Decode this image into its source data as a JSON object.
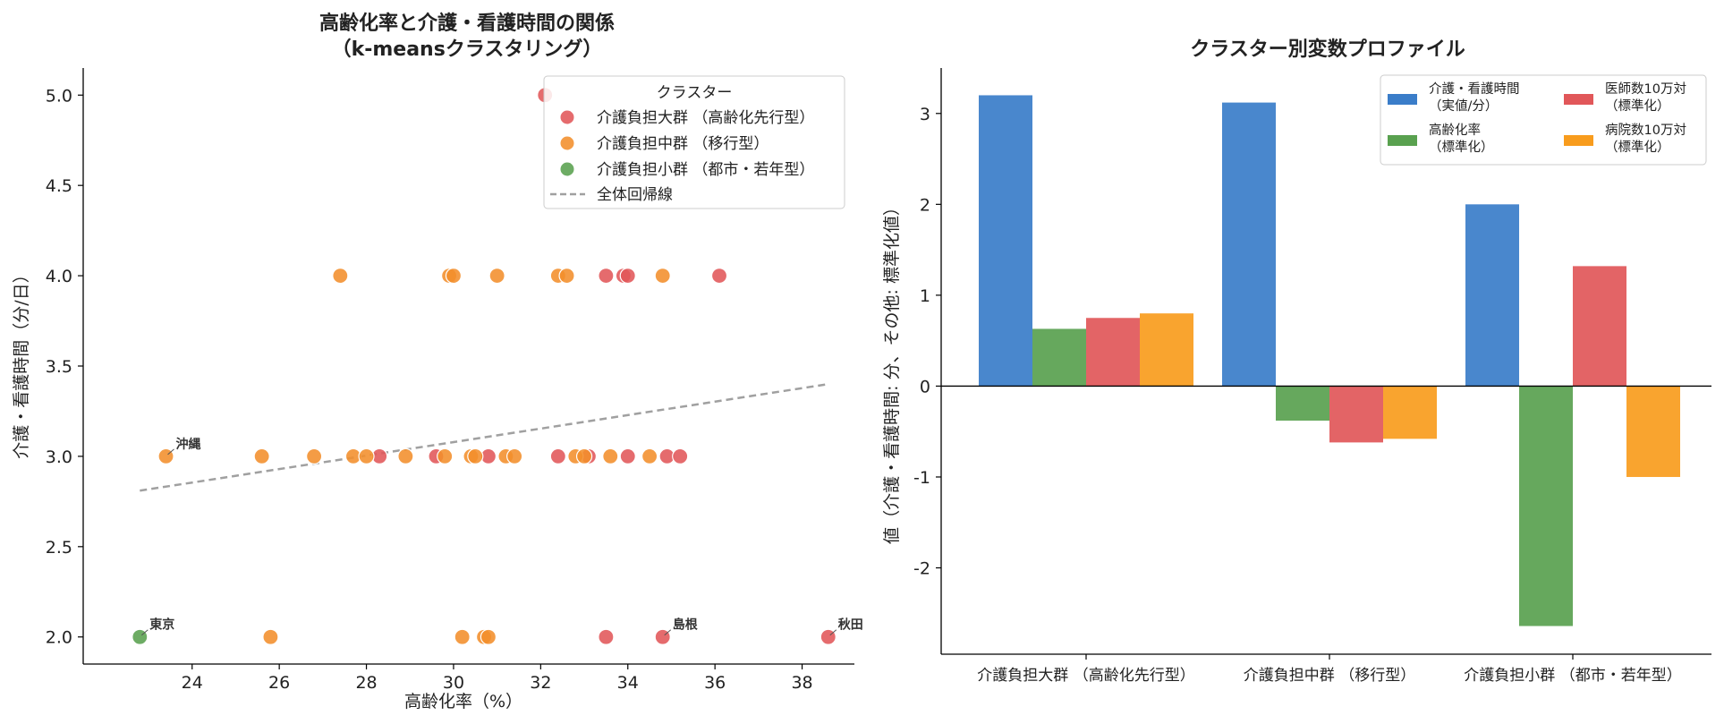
{
  "colors": {
    "large": "#e15759",
    "mid": "#f28e2b",
    "small": "#59a14f",
    "blue": "#3a7dc9",
    "green": "#59a14f",
    "red": "#e15759",
    "orange": "#f89c1d",
    "regression": "#a0a0a0"
  },
  "chart_data": [
    {
      "type": "scatter",
      "title": "高齢化率と介護・看護時間の関係\n（k-meansクラスタリング）",
      "title_lines": [
        "高齢化率と介護・看護時間の関係",
        "（k-meansクラスタリング）"
      ],
      "xlabel": "高齢化率（%）",
      "ylabel": "介護・看護時間（分/日）",
      "xlim": [
        21.5,
        39.2
      ],
      "ylim": [
        1.85,
        5.15
      ],
      "x_ticks": [
        24,
        26,
        28,
        30,
        32,
        34,
        36,
        38
      ],
      "x_tick_labels": [
        "24",
        "26",
        "28",
        "30",
        "32",
        "34",
        "36",
        "38"
      ],
      "y_ticks": [
        2.0,
        2.5,
        3.0,
        3.5,
        4.0,
        4.5,
        5.0
      ],
      "y_tick_labels": [
        "2.0",
        "2.5",
        "3.0",
        "3.5",
        "4.0",
        "4.5",
        "5.0"
      ],
      "grid": false,
      "legend_title": "クラスター",
      "legend_position": "top-right",
      "regression_label": "全体回帰線",
      "regression_line": {
        "x": [
          22.8,
          38.6
        ],
        "y": [
          2.81,
          3.4
        ]
      },
      "series": [
        {
          "name": "介護負担大群 （高齢化先行型）",
          "color_key": "large",
          "points": [
            [
              32.1,
              5.0
            ],
            [
              33.5,
              4.0
            ],
            [
              33.9,
              4.0
            ],
            [
              34.0,
              4.0
            ],
            [
              36.1,
              4.0
            ],
            [
              28.3,
              3.0
            ],
            [
              29.6,
              3.0
            ],
            [
              30.8,
              3.0
            ],
            [
              32.4,
              3.0
            ],
            [
              33.1,
              3.0
            ],
            [
              34.0,
              3.0
            ],
            [
              34.9,
              3.0
            ],
            [
              35.2,
              3.0
            ],
            [
              33.5,
              2.0
            ],
            [
              34.8,
              2.0
            ],
            [
              38.6,
              2.0
            ]
          ]
        },
        {
          "name": "介護負担中群 （移行型）",
          "color_key": "mid",
          "points": [
            [
              27.4,
              4.0
            ],
            [
              29.9,
              4.0
            ],
            [
              30.0,
              4.0
            ],
            [
              31.0,
              4.0
            ],
            [
              32.4,
              4.0
            ],
            [
              32.6,
              4.0
            ],
            [
              34.8,
              4.0
            ],
            [
              23.4,
              3.0
            ],
            [
              25.6,
              3.0
            ],
            [
              26.8,
              3.0
            ],
            [
              27.7,
              3.0
            ],
            [
              28.0,
              3.0
            ],
            [
              28.9,
              3.0
            ],
            [
              29.8,
              3.0
            ],
            [
              30.4,
              3.0
            ],
            [
              30.5,
              3.0
            ],
            [
              31.2,
              3.0
            ],
            [
              31.4,
              3.0
            ],
            [
              32.8,
              3.0
            ],
            [
              33.0,
              3.0
            ],
            [
              33.6,
              3.0
            ],
            [
              34.5,
              3.0
            ],
            [
              25.8,
              2.0
            ],
            [
              30.2,
              2.0
            ],
            [
              30.7,
              2.0
            ],
            [
              30.8,
              2.0
            ]
          ]
        },
        {
          "name": "介護負担小群 （都市・若年型）",
          "color_key": "small",
          "points": [
            [
              22.8,
              2.0
            ]
          ]
        }
      ],
      "annotations": [
        {
          "text": "沖縄",
          "x": 23.4,
          "y": 3.0
        },
        {
          "text": "東京",
          "x": 22.8,
          "y": 2.0
        },
        {
          "text": "島根",
          "x": 34.8,
          "y": 2.0
        },
        {
          "text": "秋田",
          "x": 38.6,
          "y": 2.0
        }
      ]
    },
    {
      "type": "bar",
      "title": "クラスター別変数プロファイル",
      "ylabel": "値（介護・看護時間: 分、その他: 標準化値）",
      "ylim": [
        -2.95,
        3.5
      ],
      "y_ticks": [
        -2,
        -1,
        0,
        1,
        2,
        3
      ],
      "y_tick_labels": [
        "-2",
        "-1",
        "0",
        "1",
        "2",
        "3"
      ],
      "categories": [
        "介護負担大群 （高齢化先行型）",
        "介護負担中群 （移行型）",
        "介護負担小群 （都市・若年型）"
      ],
      "legend_position": "top-right",
      "series": [
        {
          "name": "介護・看護時間\n（実値/分）",
          "name_lines": [
            "介護・看護時間",
            "（実値/分）"
          ],
          "color_key": "blue",
          "values": [
            3.2,
            3.12,
            2.0
          ]
        },
        {
          "name": "高齢化率\n（標準化）",
          "name_lines": [
            "高齢化率",
            "（標準化）"
          ],
          "color_key": "green",
          "values": [
            0.63,
            -0.38,
            -2.64
          ]
        },
        {
          "name": "医師数10万対\n（標準化）",
          "name_lines": [
            "医師数10万対",
            "（標準化）"
          ],
          "color_key": "red",
          "values": [
            0.75,
            -0.62,
            1.32
          ]
        },
        {
          "name": "病院数10万対\n（標準化）",
          "name_lines": [
            "病院数10万対",
            "（標準化）"
          ],
          "color_key": "orange",
          "values": [
            0.8,
            -0.58,
            -1.0
          ]
        }
      ]
    }
  ]
}
